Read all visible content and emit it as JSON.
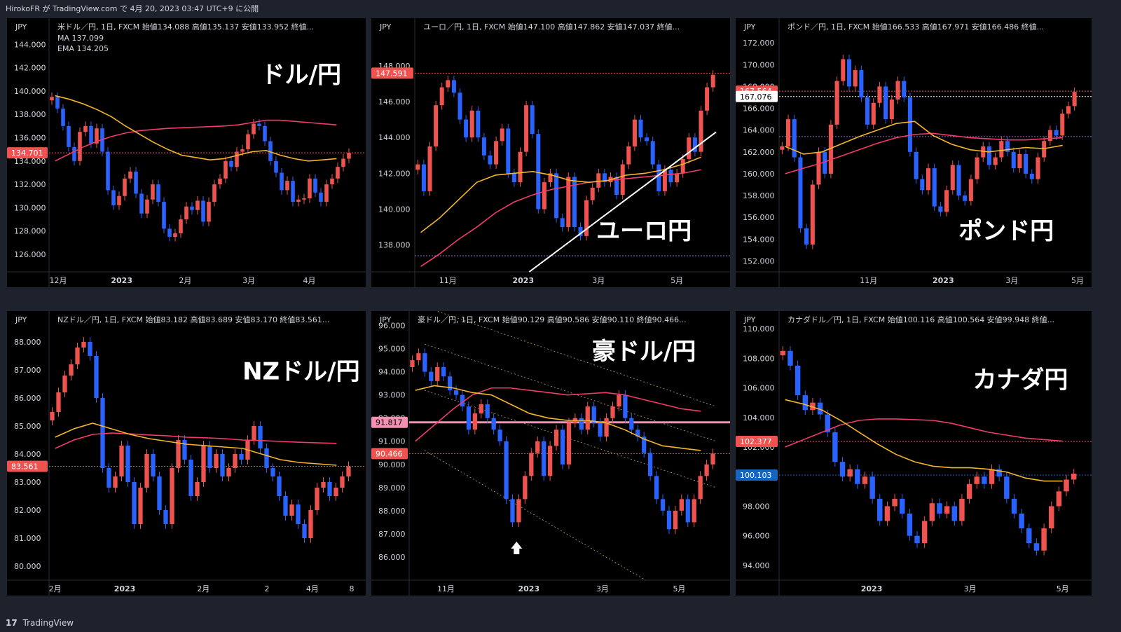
{
  "header": {
    "text": "HirokoFR が TradingView.com で 4月 20, 2023 03:47 UTC+9 に公開"
  },
  "footer": {
    "logo": "17",
    "brand": "TradingView"
  },
  "colors": {
    "bull": "#ef5350",
    "bear": "#2962ff",
    "ma": "#f23b6b",
    "ema": "#f5b62a",
    "grid": "#1a1a1a"
  },
  "chart_data": [
    {
      "type": "line",
      "title": "ドル/円",
      "currency": "JPY",
      "legend": "米ドル／円, 1日, FXCM 始値134.088 高値135.137 安値133.952 終値...",
      "legend_extra": [
        "MA 137.099",
        "EMA 134.205"
      ],
      "ylim": [
        124.5,
        146.0
      ],
      "yticks": [
        126.0,
        128.0,
        130.0,
        132.0,
        134.0,
        136.0,
        138.0,
        140.0,
        142.0,
        144.0
      ],
      "xlabels": [
        "12月",
        "2023",
        "2月",
        "3月",
        "4月"
      ],
      "price": [
        139.5,
        138.5,
        137.0,
        135.2,
        134.0,
        136.5,
        137.0,
        135.5,
        136.8,
        134.8,
        131.5,
        130.2,
        131.0,
        132.5,
        133.1,
        131.2,
        129.5,
        130.7,
        132.0,
        130.5,
        128.2,
        127.5,
        127.8,
        129.0,
        130.1,
        129.8,
        130.6,
        128.8,
        130.5,
        132.0,
        132.5,
        134.0,
        133.5,
        134.8,
        135.0,
        136.3,
        137.2,
        137.0,
        135.7,
        134.0,
        133.0,
        131.5,
        132.3,
        130.5,
        130.7,
        130.8,
        132.5,
        131.3,
        130.5,
        132.0,
        132.5,
        133.5,
        134.2,
        134.7
      ],
      "ma": [
        134.0,
        134.6,
        135.2,
        135.7,
        136.1,
        136.4,
        136.6,
        136.7,
        136.8,
        136.85,
        136.9,
        136.95,
        137.0,
        137.1,
        137.3,
        137.5,
        137.5,
        137.4,
        137.3,
        137.2,
        137.1
      ],
      "ema": [
        139.6,
        139.3,
        138.9,
        138.4,
        137.8,
        137.0,
        136.3,
        135.6,
        135.0,
        134.5,
        134.3,
        134.1,
        134.2,
        134.5,
        134.8,
        134.9,
        134.5,
        134.2,
        134.0,
        134.1,
        134.2
      ],
      "hlines": [
        {
          "value": 134.701,
          "label": "134.701",
          "color": "#ef5350",
          "style": "dotted"
        }
      ]
    },
    {
      "type": "line",
      "title": "ユーロ円",
      "currency": "JPY",
      "legend": "ユーロ／円, 1日, FXCM 始値147.100 高値147.862 安値147.037 終値...",
      "ylim": [
        136.5,
        150.5
      ],
      "yticks": [
        138.0,
        140.0,
        142.0,
        144.0,
        146.0,
        148.0
      ],
      "xlabels": [
        "11月",
        "2023",
        "3月",
        "5月"
      ],
      "price": [
        142.5,
        141.0,
        143.5,
        145.8,
        146.8,
        147.2,
        146.5,
        145.0,
        144.0,
        145.5,
        144.0,
        143.0,
        142.5,
        143.8,
        144.5,
        142.0,
        141.5,
        143.2,
        145.8,
        144.2,
        140.0,
        141.5,
        142.0,
        139.5,
        139.0,
        141.8,
        139.0,
        138.5,
        140.5,
        141.2,
        142.0,
        141.5,
        141.8,
        140.8,
        142.5,
        143.5,
        145.0,
        144.0,
        143.8,
        142.5,
        141.0,
        142.2,
        141.5,
        142.0,
        142.8,
        144.0,
        143.2,
        145.5,
        146.8,
        147.5
      ],
      "ma": [
        136.8,
        137.5,
        138.3,
        139.0,
        139.8,
        140.4,
        140.8,
        141.1,
        141.3,
        141.5,
        141.6,
        141.7,
        141.8,
        141.9,
        142.0,
        142.2
      ],
      "ema": [
        138.7,
        139.5,
        140.5,
        141.5,
        141.9,
        142.0,
        142.1,
        141.9,
        141.6,
        141.5,
        141.6,
        141.9,
        142.0,
        142.2,
        142.5,
        142.9
      ],
      "trendline": {
        "from": [
          0.38,
          136.5
        ],
        "to": [
          1.0,
          144.3
        ]
      },
      "hlines": [
        {
          "value": 147.591,
          "label": "147.591",
          "color": "#ef5350",
          "style": "dotted"
        },
        {
          "value": 137.4,
          "label": "",
          "color": "#9c6bd9",
          "style": "dotted"
        }
      ]
    },
    {
      "type": "line",
      "title": "ポンド円",
      "currency": "JPY",
      "legend": "ポンド／円, 1日, FXCM 始値166.533 高値167.971 安値166.486 終値...",
      "ylim": [
        151.0,
        174.0
      ],
      "yticks": [
        152.0,
        154.0,
        156.0,
        158.0,
        160.0,
        162.0,
        164.0,
        166.0,
        168.0,
        170.0,
        172.0
      ],
      "xlabels": [
        "11月",
        "2023",
        "3月",
        "5月"
      ],
      "price": [
        162.5,
        165.0,
        161.5,
        155.0,
        153.5,
        159.0,
        162.0,
        160.0,
        164.5,
        168.5,
        170.5,
        168.0,
        169.5,
        167.0,
        164.5,
        166.5,
        168.0,
        165.0,
        166.8,
        168.5,
        167.0,
        162.0,
        159.5,
        158.5,
        160.5,
        157.0,
        156.5,
        158.5,
        160.8,
        158.0,
        157.5,
        159.5,
        161.5,
        162.5,
        160.8,
        161.5,
        163.0,
        162.0,
        160.5,
        161.8,
        160.0,
        159.5,
        161.5,
        163.0,
        164.0,
        163.5,
        165.5,
        166.2,
        167.5
      ],
      "ma": [
        160.0,
        160.5,
        161.0,
        161.6,
        162.2,
        162.8,
        163.3,
        163.6,
        163.7,
        163.5,
        163.3,
        163.2,
        163.1,
        163.1,
        163.2,
        163.3
      ],
      "ema": [
        162.5,
        161.8,
        162.0,
        162.7,
        163.4,
        164.0,
        164.6,
        164.8,
        163.5,
        162.7,
        162.2,
        162.0,
        162.2,
        162.4,
        162.3,
        162.6
      ],
      "hlines": [
        {
          "value": 167.564,
          "label": "167.564",
          "color": "#ef5350",
          "style": "dotted"
        },
        {
          "value": 167.076,
          "label": "167.076",
          "color": "#ffffff",
          "style": "dotted"
        },
        {
          "value": 163.4,
          "label": "",
          "color": "#9c6bd9",
          "style": "dotted"
        }
      ]
    },
    {
      "type": "line",
      "title": "NZドル/円",
      "currency": "JPY",
      "legend": "NZドル／円, 1日, FXCM 始値83.182 高値83.689 安値83.170 終値83.561...",
      "ylim": [
        79.5,
        89.0
      ],
      "yticks": [
        80.0,
        81.0,
        82.0,
        83.0,
        84.0,
        85.0,
        86.0,
        87.0,
        88.0
      ],
      "xlabels": [
        "2月",
        "2023",
        "2月",
        "2",
        "4月",
        "8"
      ],
      "price": [
        85.5,
        86.2,
        86.8,
        87.2,
        87.8,
        88.0,
        87.5,
        86.0,
        83.5,
        82.8,
        83.2,
        84.3,
        83.0,
        81.5,
        82.8,
        84.0,
        83.2,
        82.0,
        81.5,
        83.5,
        84.5,
        83.8,
        82.5,
        83.0,
        84.3,
        83.5,
        84.0,
        83.2,
        83.5,
        84.0,
        83.8,
        84.5,
        85.0,
        84.2,
        83.5,
        83.2,
        82.5,
        81.8,
        82.2,
        81.5,
        81.0,
        82.0,
        82.8,
        83.0,
        82.5,
        82.8,
        83.2,
        83.56
      ],
      "ma": [
        84.2,
        84.5,
        84.7,
        84.75,
        84.72,
        84.68,
        84.65,
        84.6,
        84.58,
        84.55,
        84.5,
        84.48,
        84.45,
        84.42,
        84.4,
        84.38
      ],
      "ema": [
        84.6,
        84.9,
        85.1,
        84.9,
        84.7,
        84.55,
        84.45,
        84.35,
        84.3,
        84.25,
        84.2,
        84.0,
        83.8,
        83.7,
        83.65,
        83.6
      ],
      "hlines": [
        {
          "value": 83.561,
          "label": "83.561",
          "color": "#ef5350",
          "style": "dotted"
        }
      ]
    },
    {
      "type": "line",
      "title": "豪ドル/円",
      "currency": "JPY",
      "legend": "豪ドル／円, 1日, FXCM 始値90.129 高値90.586 安値90.110 終値90.466...",
      "ylim": [
        85.0,
        96.5
      ],
      "yticks": [
        86.0,
        87.0,
        88.0,
        89.0,
        90.0,
        91.0,
        92.0,
        93.0,
        94.0,
        95.0,
        96.0
      ],
      "xlabels": [
        "11月",
        "2023",
        "3月",
        "5月"
      ],
      "price": [
        94.5,
        94.8,
        94.0,
        93.6,
        94.2,
        93.8,
        93.2,
        93.0,
        92.5,
        91.5,
        92.2,
        92.6,
        92.0,
        91.5,
        91.0,
        88.5,
        87.5,
        88.5,
        89.5,
        90.5,
        91.0,
        89.5,
        90.8,
        91.5,
        90.0,
        91.8,
        92.0,
        91.5,
        92.5,
        91.8,
        91.2,
        92.0,
        92.5,
        93.0,
        92.0,
        91.5,
        91.2,
        90.5,
        89.5,
        88.5,
        88.0,
        87.2,
        88.0,
        88.5,
        87.5,
        88.5,
        89.5,
        90.0,
        90.47
      ],
      "ma": [
        91.0,
        91.7,
        92.4,
        93.0,
        93.3,
        93.3,
        93.2,
        93.1,
        93.0,
        93.05,
        93.1,
        93.0,
        92.8,
        92.6,
        92.4,
        92.3
      ],
      "ema": [
        93.2,
        93.4,
        93.3,
        93.1,
        93.0,
        92.6,
        92.2,
        92.0,
        91.9,
        91.9,
        91.8,
        91.5,
        91.1,
        90.8,
        90.7,
        90.6
      ],
      "channel": [
        [
          0.05,
          95.2,
          1.0,
          91.0
        ],
        [
          0.05,
          93.2,
          1.0,
          89.0
        ],
        [
          0.05,
          96.8,
          1.0,
          92.5
        ],
        [
          0.05,
          90.6,
          0.77,
          85.0
        ]
      ],
      "hlines": [
        {
          "value": 91.817,
          "label": "91.817",
          "color": "#f48fb1",
          "style": "solid"
        },
        {
          "value": 90.466,
          "label": "90.466",
          "color": "#ef5350",
          "style": "dotted"
        }
      ],
      "arrow": {
        "x": 0.35,
        "value": 86.3
      }
    },
    {
      "type": "line",
      "title": "カナダ円",
      "currency": "JPY",
      "legend": "カナダドル／円, 1日, FXCM 始値100.116 高値100.564 安値99.948 終値...",
      "ylim": [
        93.0,
        111.0
      ],
      "yticks": [
        94.0,
        96.0,
        98.0,
        100.0,
        102.0,
        104.0,
        106.0,
        108.0,
        110.0
      ],
      "xlabels": [
        "2023",
        "3月",
        "5月"
      ],
      "price": [
        108.5,
        107.5,
        105.5,
        104.5,
        105.0,
        104.2,
        103.0,
        101.0,
        100.0,
        100.5,
        99.5,
        100.0,
        98.5,
        97.0,
        98.0,
        98.5,
        97.5,
        96.0,
        95.5,
        97.0,
        98.2,
        97.5,
        98.0,
        97.0,
        98.5,
        99.5,
        100.0,
        99.5,
        100.5,
        100.0,
        98.5,
        97.5,
        96.5,
        95.5,
        95.0,
        96.5,
        98.0,
        99.0,
        99.8,
        100.2
      ],
      "ma": [
        102.0,
        102.5,
        103.0,
        103.5,
        103.8,
        103.9,
        103.9,
        103.85,
        103.8,
        103.6,
        103.3,
        103.0,
        102.8,
        102.6,
        102.5,
        102.4
      ],
      "ema": [
        105.2,
        104.9,
        104.5,
        103.8,
        103.0,
        102.2,
        101.5,
        101.0,
        100.7,
        100.6,
        100.6,
        100.5,
        100.3,
        99.9,
        99.7,
        99.7
      ],
      "hlines": [
        {
          "value": 102.377,
          "label": "102.377",
          "color": "#ef5350",
          "style": "dotted"
        },
        {
          "value": 100.103,
          "label": "100.103",
          "color": "#1565c0",
          "style": "dotted"
        }
      ]
    }
  ]
}
